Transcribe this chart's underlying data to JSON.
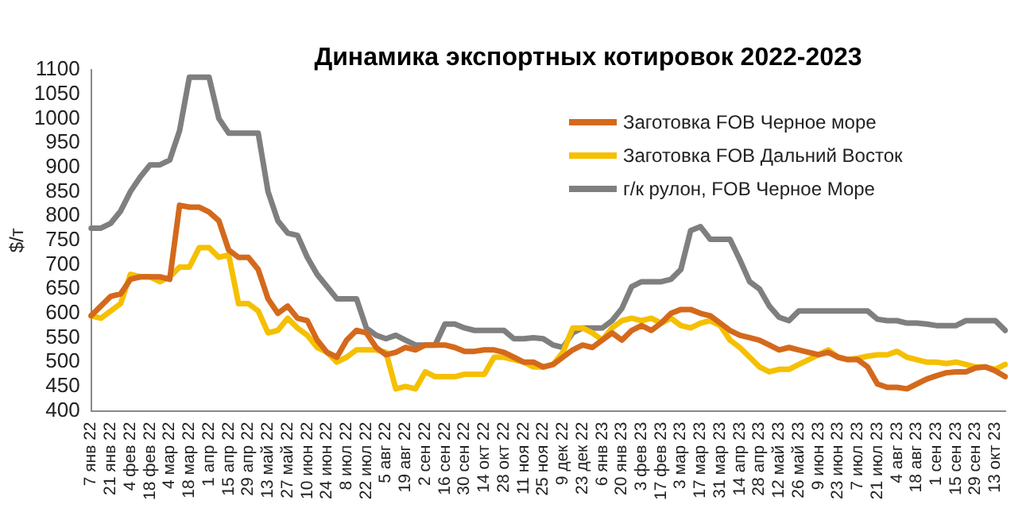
{
  "chart_data": {
    "type": "line",
    "title": "Динамика экспортных котировок 2022-2023",
    "ylabel": "$/т",
    "categories": [
      "7 янв 22",
      null,
      "21 янв 22",
      null,
      "4 фев 22",
      null,
      "18 фев 22",
      null,
      "4 мар 22",
      null,
      "18 мар 22",
      null,
      "1 апр 22",
      null,
      "15 апр 22",
      null,
      "29 апр 22",
      null,
      "13 май 22",
      null,
      "27 май 22",
      null,
      "10 июн 22",
      null,
      "24 июн 22",
      null,
      "8 июл 22",
      null,
      "22 июл 22",
      null,
      "5 авг 22",
      null,
      "19 авг 22",
      null,
      "2 сен 22",
      null,
      "16 сен 22",
      null,
      "30 сен 22",
      null,
      "14 окт 22",
      null,
      "28 окт 22",
      null,
      "11 ноя 22",
      null,
      "25 ноя 22",
      null,
      "9 дек 22",
      null,
      "23 дек 22",
      null,
      "6 янв 23",
      null,
      "20 янв 23",
      null,
      "3 фев 23",
      null,
      "17 фев 23",
      null,
      "3 мар 23",
      null,
      "17 мар 23",
      null,
      "31 мар 23",
      null,
      "14 апр 23",
      null,
      "28 апр 23",
      null,
      "12 май 23",
      null,
      "26 май 23",
      null,
      "9 июн 23",
      null,
      "23 июн 23",
      null,
      "7 июл 23",
      null,
      "21 июл 23",
      null,
      "4 авг 23",
      null,
      "18 авг 23",
      null,
      "1 сен 23",
      null,
      "15 сен 23",
      null,
      "29 сен 23",
      null,
      "13 окт 23",
      null
    ],
    "series": [
      {
        "name": "Заготовка FOB Черное море",
        "color": "#d4691c",
        "values": [
          595,
          615,
          635,
          640,
          670,
          675,
          675,
          675,
          670,
          822,
          818,
          818,
          808,
          790,
          730,
          715,
          715,
          690,
          630,
          600,
          615,
          590,
          585,
          545,
          520,
          510,
          545,
          565,
          560,
          530,
          515,
          520,
          530,
          525,
          535,
          535,
          535,
          530,
          522,
          522,
          525,
          525,
          520,
          510,
          500,
          500,
          490,
          495,
          510,
          525,
          535,
          530,
          545,
          560,
          545,
          565,
          575,
          565,
          580,
          600,
          608,
          608,
          600,
          595,
          580,
          565,
          555,
          550,
          545,
          535,
          525,
          530,
          525,
          520,
          515,
          520,
          510,
          505,
          505,
          490,
          455,
          448,
          448,
          445,
          455,
          465,
          472,
          478,
          480,
          480,
          488,
          490,
          482,
          470
        ]
      },
      {
        "name": "Заготовка FOB Дальний Восток",
        "color": "#f5c000",
        "values": [
          595,
          590,
          605,
          620,
          680,
          675,
          675,
          665,
          675,
          695,
          695,
          735,
          735,
          715,
          720,
          620,
          620,
          605,
          560,
          565,
          590,
          570,
          555,
          530,
          520,
          500,
          510,
          525,
          525,
          525,
          520,
          445,
          450,
          445,
          480,
          470,
          470,
          470,
          475,
          475,
          475,
          510,
          510,
          505,
          500,
          490,
          490,
          495,
          520,
          570,
          570,
          560,
          545,
          570,
          585,
          590,
          585,
          590,
          580,
          590,
          575,
          570,
          580,
          585,
          575,
          545,
          530,
          510,
          490,
          480,
          485,
          485,
          495,
          505,
          515,
          525,
          510,
          505,
          508,
          512,
          515,
          515,
          522,
          510,
          505,
          500,
          500,
          497,
          500,
          495,
          490,
          490,
          485,
          495
        ]
      },
      {
        "name": "г/к рулон, FOB Черное Море",
        "color": "#7f7f7f",
        "values": [
          775,
          775,
          785,
          810,
          850,
          880,
          905,
          905,
          915,
          975,
          1085,
          1085,
          1085,
          1000,
          970,
          970,
          970,
          970,
          850,
          790,
          765,
          760,
          715,
          680,
          655,
          630,
          630,
          630,
          570,
          555,
          548,
          555,
          545,
          535,
          535,
          535,
          578,
          578,
          570,
          565,
          565,
          565,
          565,
          548,
          548,
          550,
          548,
          535,
          530,
          560,
          570,
          570,
          570,
          585,
          610,
          655,
          665,
          665,
          665,
          670,
          690,
          770,
          778,
          752,
          752,
          752,
          710,
          665,
          650,
          615,
          592,
          585,
          605,
          605,
          605,
          605,
          605,
          605,
          605,
          605,
          588,
          585,
          585,
          580,
          580,
          578,
          575,
          575,
          575,
          585,
          585,
          585,
          585,
          565
        ]
      }
    ],
    "ylim": [
      400,
      1100
    ],
    "yticks": [
      400,
      450,
      500,
      550,
      600,
      650,
      700,
      750,
      800,
      850,
      900,
      950,
      1000,
      1050,
      1100
    ],
    "legend": "top right",
    "marker": "none",
    "line_style": "solid"
  }
}
